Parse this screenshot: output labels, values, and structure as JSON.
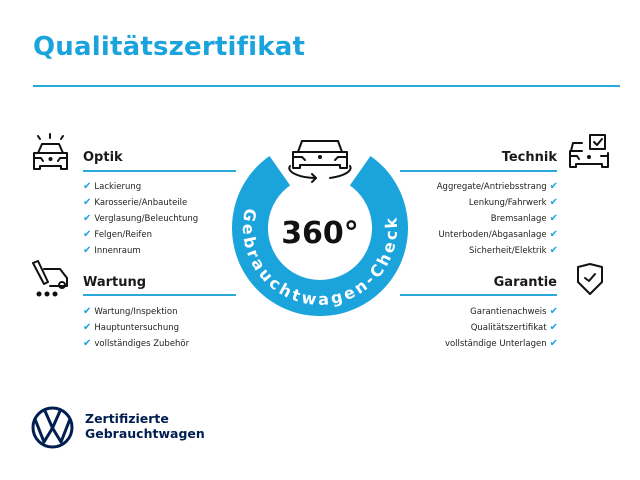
{
  "title": "Qualitätszertifikat",
  "colors": {
    "accent": "#1ba3dc",
    "brand": "#001e50"
  },
  "center": {
    "value": "360°",
    "arc_text": "Gebrauchtwagen-Check",
    "icon": "car-rotate-icon"
  },
  "sections": {
    "optik": {
      "title": "Optik",
      "icon": "car-lights-icon",
      "items": [
        "Lackierung",
        "Karosserie/Anbauteile",
        "Verglasung/Beleuchtung",
        "Felgen/Reifen",
        "Innenraum"
      ]
    },
    "wartung": {
      "title": "Wartung",
      "icon": "service-tools-icon",
      "items": [
        "Wartung/Inspektion",
        "Hauptuntersuchung",
        "vollständiges Zubehör"
      ]
    },
    "technik": {
      "title": "Technik",
      "icon": "car-checklist-icon",
      "items": [
        "Aggregate/Antriebsstrang",
        "Lenkung/Fahrwerk",
        "Bremsanlage",
        "Unterboden/Abgasanlage",
        "Sicherheit/Elektrik"
      ]
    },
    "garantie": {
      "title": "Garantie",
      "icon": "shield-check-icon",
      "items": [
        "Garantienachweis",
        "Qualitätszertifikat",
        "vollständige Unterlagen"
      ]
    }
  },
  "check_mark": "✔",
  "footer": {
    "line1": "Zertifizierte",
    "line2": "Gebrauchtwagen",
    "logo": "vw-logo"
  }
}
